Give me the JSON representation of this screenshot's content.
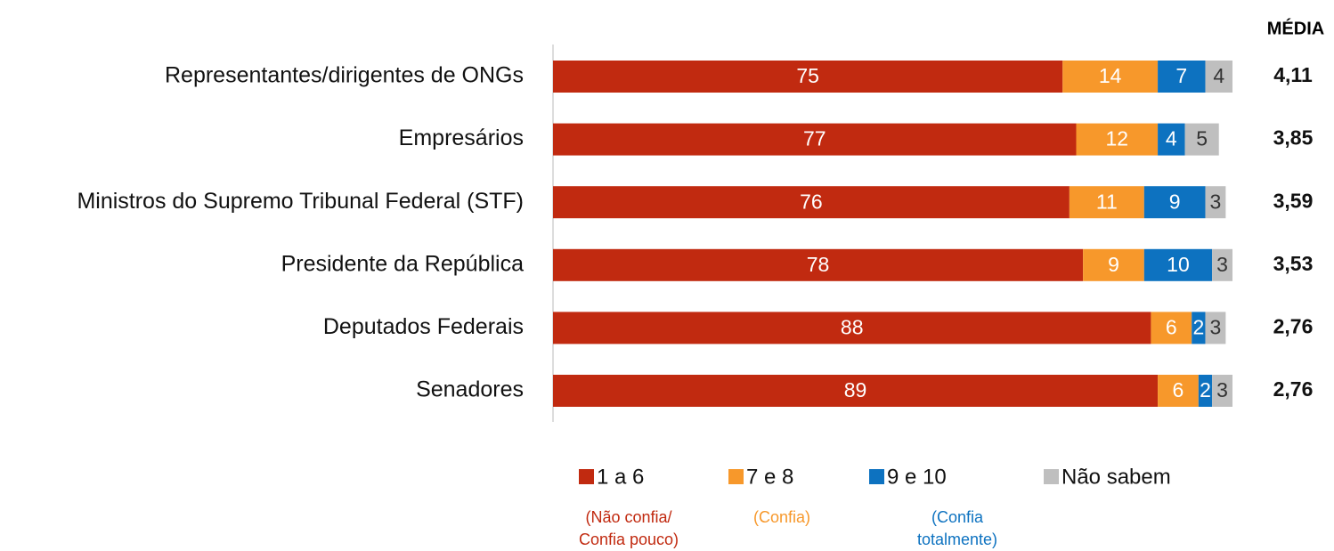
{
  "chart_data": {
    "type": "stacked-barh",
    "categories": [
      "Representantes/dirigentes de ONGs",
      "Empresários",
      "Ministros do Supremo Tribunal Federal (STF)",
      "Presidente da República",
      "Deputados Federais",
      "Senadores"
    ],
    "xlim": [
      0,
      100
    ],
    "series": [
      {
        "name": "1 a 6",
        "color": "#c12a10",
        "label_color": "#ffffff",
        "note": [
          "(Não confia/",
          "Confia pouco)"
        ],
        "values": [
          75,
          77,
          76,
          78,
          88,
          89
        ]
      },
      {
        "name": "7 e 8",
        "color": "#f7982b",
        "label_color": "#ffffff",
        "note": [
          "(Confia)"
        ],
        "values": [
          14,
          12,
          11,
          9,
          6,
          6
        ]
      },
      {
        "name": "9 e 10",
        "color": "#0d72c0",
        "label_color": "#ffffff",
        "note": [
          "(Confia",
          "totalmente)"
        ],
        "values": [
          7,
          4,
          9,
          10,
          2,
          2
        ]
      },
      {
        "name": "Não sabem",
        "color": "#bfbfbf",
        "label_color": "#333333",
        "values": [
          4,
          5,
          3,
          3,
          3,
          3
        ]
      }
    ],
    "media": {
      "title": "MÉDIA",
      "values": [
        "4,11",
        "3,85",
        "3,59",
        "3,53",
        "2,76",
        "2,76"
      ]
    }
  }
}
